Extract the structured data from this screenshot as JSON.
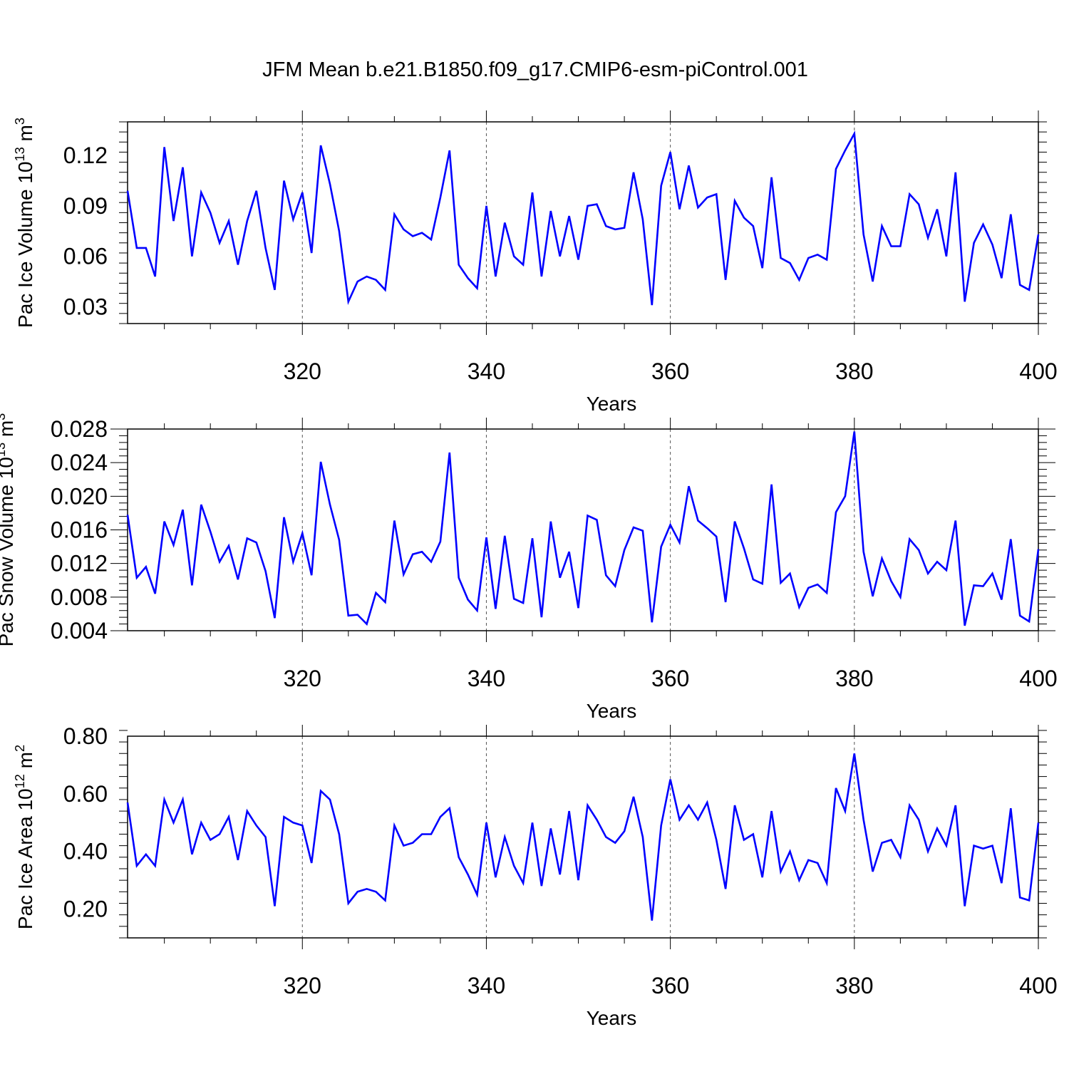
{
  "figure": {
    "title": "JFM Mean b.e21.B1850.f09_g17.CMIP6-esm-piControl.001",
    "line_color": "#0000ff"
  },
  "chart_data": [
    {
      "type": "line",
      "ylabel_main": "Pac Ice Volume 10",
      "ylabel_exp": "13",
      "ylabel_unit": " m",
      "ylabel_unit_exp": "3",
      "xlabel": "Years",
      "xlim": [
        301,
        400
      ],
      "ylim": [
        0.02,
        0.14
      ],
      "xticks": [
        320,
        340,
        360,
        380,
        400
      ],
      "xtick_labels": [
        "320",
        "340",
        "360",
        "380",
        "400"
      ],
      "yticks": [
        0.03,
        0.06,
        0.09,
        0.12
      ],
      "ytick_labels": [
        "0.03",
        "0.06",
        "0.09",
        "0.12"
      ],
      "grid_x": "dashed",
      "series": [
        {
          "x": [
            301,
            302,
            303,
            304,
            305,
            306,
            307,
            308,
            309,
            310,
            311,
            312,
            313,
            314,
            315,
            316,
            317,
            318,
            319,
            320,
            321,
            322,
            323,
            324,
            325,
            326,
            327,
            328,
            329,
            330,
            331,
            332,
            333,
            334,
            335,
            336,
            337,
            338,
            339,
            340,
            341,
            342,
            343,
            344,
            345,
            346,
            347,
            348,
            349,
            350,
            351,
            352,
            353,
            354,
            355,
            356,
            357,
            358,
            359,
            360,
            361,
            362,
            363,
            364,
            365,
            366,
            367,
            368,
            369,
            370,
            371,
            372,
            373,
            374,
            375,
            376,
            377,
            378,
            379,
            380,
            381,
            382,
            383,
            384,
            385,
            386,
            387,
            388,
            389,
            390,
            391,
            392,
            393,
            394,
            395,
            396,
            397,
            398,
            399,
            400
          ],
          "values": [
            0.099,
            0.065,
            0.065,
            0.048,
            0.125,
            0.081,
            0.113,
            0.06,
            0.098,
            0.086,
            0.068,
            0.081,
            0.055,
            0.081,
            0.099,
            0.065,
            0.04,
            0.105,
            0.082,
            0.098,
            0.062,
            0.126,
            0.103,
            0.075,
            0.033,
            0.045,
            0.048,
            0.046,
            0.04,
            0.085,
            0.076,
            0.072,
            0.074,
            0.07,
            0.095,
            0.123,
            0.055,
            0.047,
            0.041,
            0.09,
            0.048,
            0.08,
            0.06,
            0.055,
            0.098,
            0.048,
            0.087,
            0.06,
            0.084,
            0.058,
            0.09,
            0.091,
            0.078,
            0.076,
            0.077,
            0.11,
            0.082,
            0.031,
            0.102,
            0.122,
            0.088,
            0.114,
            0.089,
            0.095,
            0.097,
            0.046,
            0.093,
            0.083,
            0.078,
            0.053,
            0.107,
            0.059,
            0.056,
            0.046,
            0.059,
            0.061,
            0.058,
            0.112,
            0.123,
            0.133,
            0.073,
            0.045,
            0.078,
            0.066,
            0.066,
            0.097,
            0.091,
            0.071,
            0.088,
            0.06,
            0.11,
            0.033,
            0.068,
            0.079,
            0.067,
            0.047,
            0.085,
            0.043,
            0.04,
            0.073
          ]
        }
      ]
    },
    {
      "type": "line",
      "ylabel_main": "Pac Snow Volume 10",
      "ylabel_exp": "13",
      "ylabel_unit": " m",
      "ylabel_unit_exp": "3",
      "xlabel": "Years",
      "xlim": [
        301,
        400
      ],
      "ylim": [
        0.004,
        0.028
      ],
      "xticks": [
        320,
        340,
        360,
        380,
        400
      ],
      "xtick_labels": [
        "320",
        "340",
        "360",
        "380",
        "400"
      ],
      "yticks": [
        0.004,
        0.008,
        0.012,
        0.016,
        0.02,
        0.024,
        0.028
      ],
      "ytick_labels": [
        "0.004",
        "0.008",
        "0.012",
        "0.016",
        "0.020",
        "0.024",
        "0.028"
      ],
      "grid_x": "dashed",
      "series": [
        {
          "x": [
            301,
            302,
            303,
            304,
            305,
            306,
            307,
            308,
            309,
            310,
            311,
            312,
            313,
            314,
            315,
            316,
            317,
            318,
            319,
            320,
            321,
            322,
            323,
            324,
            325,
            326,
            327,
            328,
            329,
            330,
            331,
            332,
            333,
            334,
            335,
            336,
            337,
            338,
            339,
            340,
            341,
            342,
            343,
            344,
            345,
            346,
            347,
            348,
            349,
            350,
            351,
            352,
            353,
            354,
            355,
            356,
            357,
            358,
            359,
            360,
            361,
            362,
            363,
            364,
            365,
            366,
            367,
            368,
            369,
            370,
            371,
            372,
            373,
            374,
            375,
            376,
            377,
            378,
            379,
            380,
            381,
            382,
            383,
            384,
            385,
            386,
            387,
            388,
            389,
            390,
            391,
            392,
            393,
            394,
            395,
            396,
            397,
            398,
            399,
            400
          ],
          "values": [
            0.0178,
            0.0103,
            0.0116,
            0.0084,
            0.017,
            0.0142,
            0.0184,
            0.0094,
            0.019,
            0.0158,
            0.0122,
            0.0141,
            0.0101,
            0.015,
            0.0145,
            0.0111,
            0.0055,
            0.0175,
            0.0122,
            0.0156,
            0.0106,
            0.0241,
            0.019,
            0.0148,
            0.0058,
            0.0059,
            0.0048,
            0.0085,
            0.0074,
            0.0171,
            0.0107,
            0.0131,
            0.0134,
            0.0122,
            0.0146,
            0.0252,
            0.0103,
            0.0077,
            0.0064,
            0.0151,
            0.0066,
            0.0153,
            0.0078,
            0.0073,
            0.015,
            0.0056,
            0.017,
            0.0103,
            0.0134,
            0.0067,
            0.0177,
            0.0172,
            0.0106,
            0.0093,
            0.0136,
            0.0163,
            0.0159,
            0.005,
            0.014,
            0.0166,
            0.0145,
            0.0212,
            0.0171,
            0.0162,
            0.0152,
            0.0074,
            0.017,
            0.0138,
            0.0101,
            0.0096,
            0.0214,
            0.0097,
            0.0108,
            0.0068,
            0.0091,
            0.0095,
            0.0085,
            0.0181,
            0.02,
            0.0277,
            0.0134,
            0.0081,
            0.0126,
            0.0099,
            0.008,
            0.0149,
            0.0136,
            0.0108,
            0.0122,
            0.0112,
            0.0171,
            0.0046,
            0.0094,
            0.0093,
            0.0108,
            0.0077,
            0.0149,
            0.0058,
            0.0051,
            0.0137
          ]
        }
      ]
    },
    {
      "type": "line",
      "ylabel_main": "Pac Ice Area 10",
      "ylabel_exp": "12",
      "ylabel_unit": " m",
      "ylabel_unit_exp": "2",
      "xlabel": "Years",
      "xlim": [
        301,
        400
      ],
      "ylim": [
        0.1,
        0.8
      ],
      "xticks": [
        320,
        340,
        360,
        380,
        400
      ],
      "xtick_labels": [
        "320",
        "340",
        "360",
        "380",
        "400"
      ],
      "yticks": [
        0.2,
        0.4,
        0.6,
        0.8
      ],
      "ytick_labels": [
        "0.20",
        "0.40",
        "0.60",
        "0.80"
      ],
      "grid_x": "dashed",
      "series": [
        {
          "x": [
            301,
            302,
            303,
            304,
            305,
            306,
            307,
            308,
            309,
            310,
            311,
            312,
            313,
            314,
            315,
            316,
            317,
            318,
            319,
            320,
            321,
            322,
            323,
            324,
            325,
            326,
            327,
            328,
            329,
            330,
            331,
            332,
            333,
            334,
            335,
            336,
            337,
            338,
            339,
            340,
            341,
            342,
            343,
            344,
            345,
            346,
            347,
            348,
            349,
            350,
            351,
            352,
            353,
            354,
            355,
            356,
            357,
            358,
            359,
            360,
            361,
            362,
            363,
            364,
            365,
            366,
            367,
            368,
            369,
            370,
            371,
            372,
            373,
            374,
            375,
            376,
            377,
            378,
            379,
            380,
            381,
            382,
            383,
            384,
            385,
            386,
            387,
            388,
            389,
            390,
            391,
            392,
            393,
            394,
            395,
            396,
            397,
            398,
            399,
            400
          ],
          "values": [
            0.57,
            0.35,
            0.39,
            0.35,
            0.58,
            0.5,
            0.58,
            0.39,
            0.5,
            0.44,
            0.46,
            0.52,
            0.37,
            0.54,
            0.49,
            0.45,
            0.21,
            0.52,
            0.5,
            0.49,
            0.36,
            0.61,
            0.58,
            0.46,
            0.22,
            0.26,
            0.27,
            0.26,
            0.23,
            0.49,
            0.42,
            0.43,
            0.46,
            0.46,
            0.52,
            0.55,
            0.38,
            0.32,
            0.25,
            0.5,
            0.31,
            0.45,
            0.35,
            0.29,
            0.5,
            0.28,
            0.48,
            0.32,
            0.54,
            0.3,
            0.56,
            0.51,
            0.45,
            0.43,
            0.47,
            0.59,
            0.45,
            0.16,
            0.49,
            0.65,
            0.51,
            0.56,
            0.51,
            0.57,
            0.44,
            0.27,
            0.56,
            0.44,
            0.46,
            0.31,
            0.54,
            0.33,
            0.4,
            0.3,
            0.37,
            0.36,
            0.29,
            0.62,
            0.54,
            0.74,
            0.51,
            0.33,
            0.43,
            0.44,
            0.38,
            0.56,
            0.51,
            0.4,
            0.48,
            0.42,
            0.56,
            0.21,
            0.42,
            0.41,
            0.42,
            0.29,
            0.55,
            0.24,
            0.23,
            0.5
          ]
        }
      ]
    }
  ]
}
